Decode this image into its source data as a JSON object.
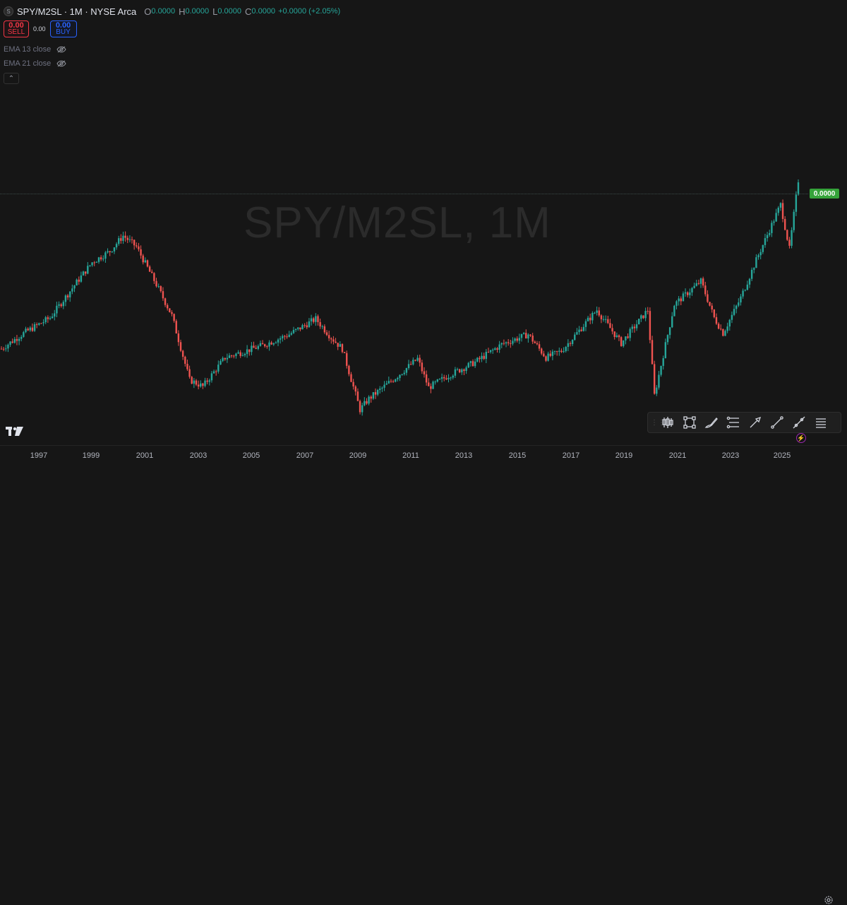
{
  "header": {
    "symbol": "SPY/M2SL · 1M · NYSE Arca",
    "logo_letter": "S",
    "o_label": "O",
    "o_value": "0.0000",
    "h_label": "H",
    "h_value": "0.0000",
    "l_label": "L",
    "l_value": "0.0000",
    "c_label": "C",
    "c_value": "0.0000",
    "change": "+0.0000 (+2.05%)"
  },
  "trade": {
    "sell_price": "0.00",
    "sell_label": "SELL",
    "spread": "0.00",
    "buy_price": "0.00",
    "buy_label": "BUY"
  },
  "indicators": [
    {
      "label": "EMA 13 close",
      "icon": "eye-hidden-icon"
    },
    {
      "label": "EMA 21 close",
      "icon": "eye-hidden-icon"
    }
  ],
  "collapse_icon": "chevron-up-icon",
  "watermark": "SPY/M2SL, 1M",
  "last_price_tag": "0.0000",
  "colors": {
    "up": "#26a69a",
    "down": "#ef5350",
    "background": "#161616",
    "price_tag": "#35a33a"
  },
  "toolbar": {
    "tools": [
      "candles-icon",
      "rectangle-icon",
      "brush-icon",
      "fib-retracement-icon",
      "arrow-icon",
      "trend-line-icon",
      "ray-icon",
      "menu-icon"
    ]
  },
  "time_axis": [
    "1997",
    "1999",
    "2001",
    "2003",
    "2005",
    "2007",
    "2009",
    "2011",
    "2013",
    "2015",
    "2017",
    "2019",
    "2021",
    "2023",
    "2025"
  ],
  "chart_data": {
    "type": "candlestick",
    "title": "SPY/M2SL, 1M",
    "x_range": [
      "1995-08",
      "2025-08"
    ],
    "series_close": [
      [
        "1995-08",
        0.46
      ],
      [
        "1996-06",
        0.474
      ],
      [
        "1997-06",
        0.488
      ],
      [
        "1998-06",
        0.52
      ],
      [
        "1999-01",
        0.538
      ],
      [
        "1999-09",
        0.548
      ],
      [
        "2000-03",
        0.562
      ],
      [
        "2000-09",
        0.552
      ],
      [
        "2001-06",
        0.518
      ],
      [
        "2002-01",
        0.49
      ],
      [
        "2002-09",
        0.432
      ],
      [
        "2003-03",
        0.426
      ],
      [
        "2004-01",
        0.452
      ],
      [
        "2005-06",
        0.463
      ],
      [
        "2006-06",
        0.473
      ],
      [
        "2007-06",
        0.487
      ],
      [
        "2008-01",
        0.47
      ],
      [
        "2008-06",
        0.46
      ],
      [
        "2009-02",
        0.405
      ],
      [
        "2009-06",
        0.415
      ],
      [
        "2010-06",
        0.434
      ],
      [
        "2011-04",
        0.451
      ],
      [
        "2011-09",
        0.425
      ],
      [
        "2012-06",
        0.436
      ],
      [
        "2013-06",
        0.448
      ],
      [
        "2014-06",
        0.464
      ],
      [
        "2015-06",
        0.473
      ],
      [
        "2016-02",
        0.452
      ],
      [
        "2016-09",
        0.458
      ],
      [
        "2018-01",
        0.495
      ],
      [
        "2018-12",
        0.465
      ],
      [
        "2019-12",
        0.495
      ],
      [
        "2020-03",
        0.418
      ],
      [
        "2020-12",
        0.5
      ],
      [
        "2021-12",
        0.521
      ],
      [
        "2022-06",
        0.488
      ],
      [
        "2022-10",
        0.474
      ],
      [
        "2023-06",
        0.506
      ],
      [
        "2024-01",
        0.54
      ],
      [
        "2024-12",
        0.59
      ],
      [
        "2025-04",
        0.55
      ],
      [
        "2025-08",
        0.612
      ]
    ]
  }
}
